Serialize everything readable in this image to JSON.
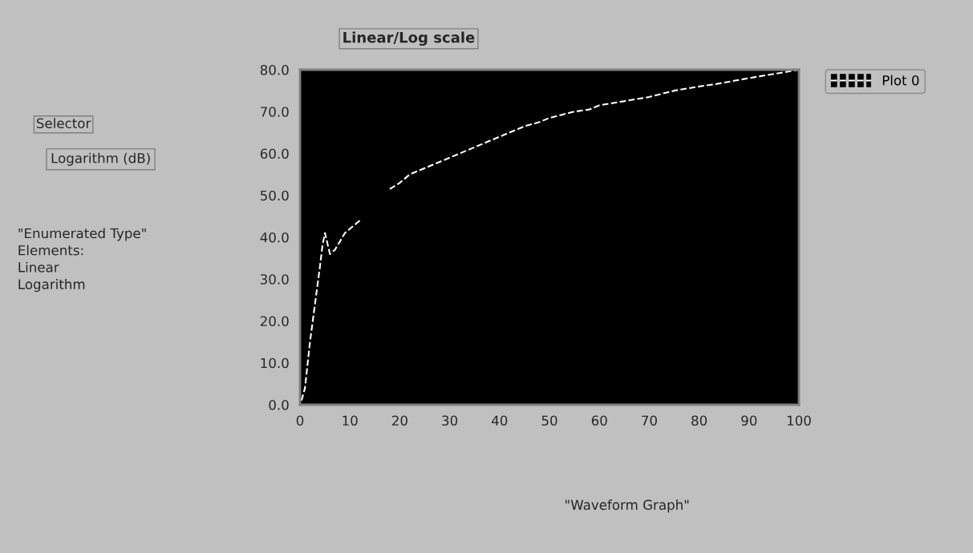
{
  "chart_data": {
    "type": "line",
    "title": "Linear/Log scale",
    "x": [
      0.3,
      1,
      2,
      3,
      4,
      4.5,
      5,
      6,
      7,
      8,
      9,
      10,
      11,
      12,
      15,
      18,
      20,
      22,
      25,
      28,
      30,
      33,
      35,
      38,
      40,
      43,
      45,
      48,
      50,
      55,
      58,
      60,
      65,
      70,
      75,
      80,
      83,
      90,
      95,
      100
    ],
    "series": [
      {
        "name": "Plot 0",
        "color": "#ffffff",
        "values": [
          1,
          4,
          15,
          24,
          33,
          38,
          41,
          36,
          37,
          39,
          41,
          42,
          43,
          44,
          null,
          51.5,
          53,
          55,
          56.5,
          58,
          59,
          60.5,
          61.5,
          63,
          64,
          65.5,
          66.5,
          67.5,
          68.5,
          70,
          70.5,
          71.5,
          72.5,
          73.5,
          75,
          76,
          76.5,
          78,
          79,
          80
        ]
      }
    ],
    "xlim": [
      0,
      100
    ],
    "ylim": [
      0,
      80
    ],
    "xticks": [
      0,
      10,
      20,
      30,
      40,
      50,
      60,
      70,
      80,
      90,
      100
    ],
    "yticks": [
      {
        "value": 0,
        "label": "0.0"
      },
      {
        "value": 10,
        "label": "10.0"
      },
      {
        "value": 20,
        "label": "20.0"
      },
      {
        "value": 30,
        "label": "30.0"
      },
      {
        "value": 40,
        "label": "40.0"
      },
      {
        "value": 50,
        "label": "50.0"
      },
      {
        "value": 60,
        "label": "60.0"
      },
      {
        "value": 70,
        "label": "70.0"
      },
      {
        "value": 80,
        "label": "80.0"
      }
    ],
    "legend": "top right",
    "line_style": "dashed",
    "marker": "none",
    "grid": false,
    "annotations": [
      "Selector",
      "Logarithm (dB)",
      "\"Enumerated Type\"\nElements:\nLinear\nLogarithm",
      "\"Waveform Graph\""
    ]
  }
}
